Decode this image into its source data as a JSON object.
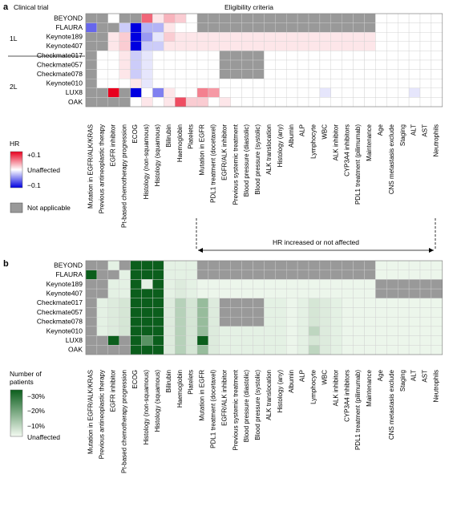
{
  "figure": {
    "panel_a_letter": "a",
    "panel_b_letter": "b",
    "clinical_trial_label": "Clinical trial",
    "eligibility_label": "Eligibility criteria",
    "group_1L": "1L",
    "group_2L": "2L",
    "hr_arrow_label": "HR increased or not affected"
  },
  "legend_a": {
    "title": "HR",
    "top": "+0.1",
    "mid": "Unaffected",
    "bottom": "−0.1",
    "na": "Not applicable",
    "colors": {
      "pos": "#e8001e",
      "neg": "#0000e0",
      "na": "#999999",
      "neutral": "#ffffff"
    }
  },
  "legend_b": {
    "title_line1": "Number of",
    "title_line2": "patients",
    "ticks": [
      "−30%",
      "−20%",
      "−10%"
    ],
    "bottom": "Unaffected",
    "colors": {
      "max": "#0b5e1c",
      "min": "#f4fbf2"
    }
  },
  "chart_data": [
    {
      "type": "heatmap",
      "panel": "a",
      "metric": "HR",
      "scale": [
        -0.1,
        0.1
      ],
      "rows": [
        "BEYOND",
        "FLAURA",
        "Keynote189",
        "Keynote407",
        "Checkmate017",
        "Checkmate057",
        "Checkmate078",
        "Keynote010",
        "LUX8",
        "OAK"
      ],
      "columns": [
        "Mutation in EGFR/ALK/KRAS",
        "Previous antineoplastic therapy",
        "EGFR inhibitor",
        "Pt-based chemotherapy progression",
        "ECOG",
        "Histology (non-squamous)",
        "Histology (squamous)",
        "Bilirubin",
        "Haemoglobin",
        "Platelets",
        "Mutation in EGFR",
        "PDL1 treatment (docetaxel)",
        "EGFR/ALK inhibitor",
        "Previous systemic treatment",
        "Blood pressure (diastolic)",
        "Blood pressure (systolic)",
        "ALK translocation",
        "Histology (any)",
        "Albumin",
        "ALP",
        "Lymphocyte",
        "WBC",
        "ALK inhibitor",
        "CYP3A4 inhibitors",
        "PDL1 treatment (pilimumab)",
        "Maintenance",
        "Age",
        "CNS metastasis exclude",
        "Staging",
        "ALT",
        "AST",
        "Neutrophils"
      ],
      "na_value": "NA",
      "values": [
        [
          "NA",
          "NA",
          0,
          "NA",
          "NA",
          0.06,
          0.01,
          0.03,
          0.02,
          0,
          "NA",
          "NA",
          "NA",
          "NA",
          "NA",
          "NA",
          "NA",
          "NA",
          "NA",
          "NA",
          "NA",
          "NA",
          "NA",
          "NA",
          "NA",
          "NA",
          0,
          0,
          0,
          0,
          0,
          0
        ],
        [
          -0.06,
          "NA",
          "NA",
          -0.02,
          -0.12,
          -0.03,
          -0.03,
          0.01,
          0,
          0,
          "NA",
          "NA",
          "NA",
          "NA",
          "NA",
          "NA",
          "NA",
          "NA",
          "NA",
          "NA",
          "NA",
          "NA",
          "NA",
          "NA",
          "NA",
          "NA",
          0,
          0,
          0,
          0,
          0,
          0
        ],
        [
          "NA",
          "NA",
          0.01,
          0.02,
          -0.1,
          -0.04,
          -0.01,
          0.02,
          0.01,
          0.01,
          0.01,
          0.01,
          0.01,
          0.01,
          0.01,
          0.01,
          0.01,
          0.01,
          0.01,
          0.01,
          0.01,
          0.01,
          0.01,
          0.01,
          0.01,
          0.01,
          0,
          0,
          0,
          0,
          0,
          0
        ],
        [
          "NA",
          "NA",
          0.01,
          0.02,
          -0.1,
          -0.02,
          -0.02,
          0.01,
          0.01,
          0.01,
          0.01,
          0.01,
          0.01,
          0.01,
          0.01,
          0.01,
          0.01,
          0.01,
          0.01,
          0.01,
          0.01,
          0.01,
          0.01,
          0.01,
          0.01,
          0.01,
          0,
          0,
          0,
          0,
          0,
          0
        ],
        [
          "NA",
          0,
          0,
          0.01,
          -0.02,
          -0.01,
          0,
          0,
          0,
          0,
          0,
          0,
          "NA",
          "NA",
          "NA",
          "NA",
          0,
          0,
          0,
          0,
          0,
          0,
          0,
          0,
          0,
          0,
          0,
          0,
          0,
          0,
          0,
          0
        ],
        [
          "NA",
          0,
          0,
          0.01,
          -0.02,
          -0.01,
          0,
          0,
          0,
          0,
          0,
          0,
          "NA",
          "NA",
          "NA",
          "NA",
          0,
          0,
          0,
          0,
          0,
          0,
          0,
          0,
          0,
          0,
          0,
          0,
          0,
          0,
          0,
          0
        ],
        [
          "NA",
          0,
          0,
          0.01,
          -0.02,
          -0.01,
          0,
          0,
          0,
          0,
          0,
          0,
          "NA",
          "NA",
          "NA",
          "NA",
          0,
          0,
          0,
          0,
          0,
          0,
          0,
          0,
          0,
          0,
          0,
          0,
          0,
          0,
          0,
          0
        ],
        [
          "NA",
          0,
          0,
          0,
          0.01,
          -0.01,
          0,
          0,
          0,
          0,
          0,
          0,
          0,
          0,
          0,
          0,
          0,
          0,
          0,
          0,
          0,
          0,
          0,
          0,
          0,
          0,
          0,
          0,
          0,
          0,
          0,
          0
        ],
        [
          "NA",
          "NA",
          0.1,
          "NA",
          -0.1,
          0,
          -0.05,
          0.01,
          0,
          0,
          0.05,
          0.04,
          0,
          0,
          0,
          0,
          0,
          0,
          0,
          0,
          0,
          -0.01,
          0,
          0,
          0,
          0,
          0,
          0,
          0,
          -0.01,
          0,
          0
        ],
        [
          "NA",
          "NA",
          "NA",
          "NA",
          0,
          0.01,
          0,
          0.01,
          0.07,
          0.02,
          0.02,
          0,
          0.01,
          0,
          0,
          0,
          0,
          0,
          0,
          0,
          0,
          0,
          0,
          0,
          0,
          0,
          0,
          0,
          0,
          0,
          0,
          0
        ]
      ]
    },
    {
      "type": "heatmap",
      "panel": "b",
      "metric": "Number of patients (% change)",
      "scale": [
        0,
        -30
      ],
      "rows": [
        "BEYOND",
        "FLAURA",
        "Keynote189",
        "Keynote407",
        "Checkmate017",
        "Checkmate057",
        "Checkmate078",
        "Keynote010",
        "LUX8",
        "OAK"
      ],
      "columns": [
        "Mutation in EGFR/ALK/KRAS",
        "Previous antineoplastic therapy",
        "EGFR inhibitor",
        "Pt-based chemotherapy progression",
        "ECOG",
        "Histology (non-squamous)",
        "Histology (squamous)",
        "Bilirubin",
        "Haemoglobin",
        "Platelets",
        "Mutation in EGFR",
        "PDL1 treatment (docetaxel)",
        "EGFR/ALK inhibitor",
        "Previous systemic treatment",
        "Blood pressure (diastolic)",
        "Blood pressure (systolic)",
        "ALK translocation",
        "Histology (any)",
        "Albumin",
        "ALP",
        "Lymphocyte",
        "WBC",
        "ALK inhibitor",
        "CYP3A4 inhibitors",
        "PDL1 treatment (pilimumab)",
        "Maintenance",
        "Age",
        "CNS metastasis exclude",
        "Staging",
        "ALT",
        "AST",
        "Neutrophils"
      ],
      "na_value": "NA",
      "values": [
        [
          "NA",
          "NA",
          -2,
          "NA",
          -35,
          -35,
          -35,
          -2,
          -2,
          -2,
          "NA",
          "NA",
          "NA",
          "NA",
          "NA",
          "NA",
          "NA",
          "NA",
          "NA",
          "NA",
          "NA",
          "NA",
          "NA",
          "NA",
          "NA",
          "NA",
          -1,
          -1,
          -1,
          -1,
          -1,
          -1
        ],
        [
          -30,
          "NA",
          "NA",
          -2,
          -35,
          -35,
          -35,
          -2,
          -2,
          -2,
          "NA",
          "NA",
          "NA",
          "NA",
          "NA",
          "NA",
          "NA",
          "NA",
          "NA",
          "NA",
          "NA",
          "NA",
          "NA",
          "NA",
          "NA",
          "NA",
          -1,
          -1,
          -1,
          -1,
          -1,
          -1
        ],
        [
          "NA",
          "NA",
          -2,
          -2,
          -35,
          -2,
          -35,
          -2,
          -3,
          -2,
          -1,
          -1,
          -1,
          -1,
          -1,
          -1,
          -1,
          -1,
          -1,
          -1,
          -1,
          -1,
          -1,
          -1,
          -1,
          -1,
          "NA",
          "NA",
          "NA",
          "NA",
          "NA",
          "NA"
        ],
        [
          "NA",
          "NA",
          -2,
          -2,
          -35,
          -35,
          -35,
          -2,
          -3,
          -2,
          -1,
          -1,
          -1,
          -1,
          -1,
          -1,
          -1,
          -1,
          -1,
          -1,
          -1,
          -1,
          -1,
          -1,
          -1,
          -1,
          "NA",
          "NA",
          "NA",
          "NA",
          "NA",
          "NA"
        ],
        [
          "NA",
          -2,
          -3,
          -4,
          -35,
          -33,
          -35,
          -3,
          -8,
          -4,
          -12,
          -3,
          "NA",
          "NA",
          "NA",
          "NA",
          -2,
          -2,
          -1,
          -2,
          -4,
          -3,
          -2,
          -1,
          -1,
          -1,
          -1,
          -1,
          -1,
          -1,
          -1,
          -1
        ],
        [
          "NA",
          -2,
          -3,
          -4,
          -35,
          -33,
          -35,
          -3,
          -8,
          -4,
          -12,
          -3,
          "NA",
          "NA",
          "NA",
          "NA",
          -2,
          -2,
          -1,
          -2,
          -4,
          -3,
          -2,
          -1,
          -1,
          -1,
          -1,
          -1,
          -1,
          -1,
          -1,
          -1
        ],
        [
          "NA",
          -2,
          -3,
          -4,
          -35,
          -33,
          -35,
          -3,
          -8,
          -4,
          -12,
          -3,
          "NA",
          "NA",
          "NA",
          "NA",
          -2,
          -2,
          -1,
          -2,
          -4,
          -3,
          -2,
          -1,
          -1,
          -1,
          -1,
          -1,
          -1,
          -1,
          -1,
          -1
        ],
        [
          "NA",
          -2,
          -3,
          -4,
          -35,
          -33,
          -35,
          -3,
          -8,
          -4,
          -12,
          -3,
          -2,
          -2,
          -2,
          -2,
          -2,
          -2,
          -1,
          -2,
          -7,
          -3,
          -2,
          -1,
          -1,
          -1,
          -1,
          -1,
          -1,
          -1,
          -1,
          -1
        ],
        [
          "NA",
          "NA",
          -30,
          "NA",
          -35,
          -20,
          -35,
          -3,
          -8,
          -4,
          -30,
          -3,
          -2,
          -2,
          -2,
          -2,
          -2,
          -2,
          -1,
          -2,
          -4,
          -3,
          -2,
          -1,
          -1,
          -1,
          -1,
          -1,
          -1,
          -1,
          -1,
          -1
        ],
        [
          "NA",
          "NA",
          "NA",
          "NA",
          -35,
          -33,
          -35,
          -3,
          -8,
          -4,
          -12,
          -3,
          -2,
          -2,
          -2,
          -2,
          -2,
          -2,
          -1,
          -2,
          -7,
          -3,
          -2,
          -1,
          -1,
          -1,
          -1,
          -1,
          -1,
          -1,
          -1,
          -1
        ]
      ]
    }
  ]
}
